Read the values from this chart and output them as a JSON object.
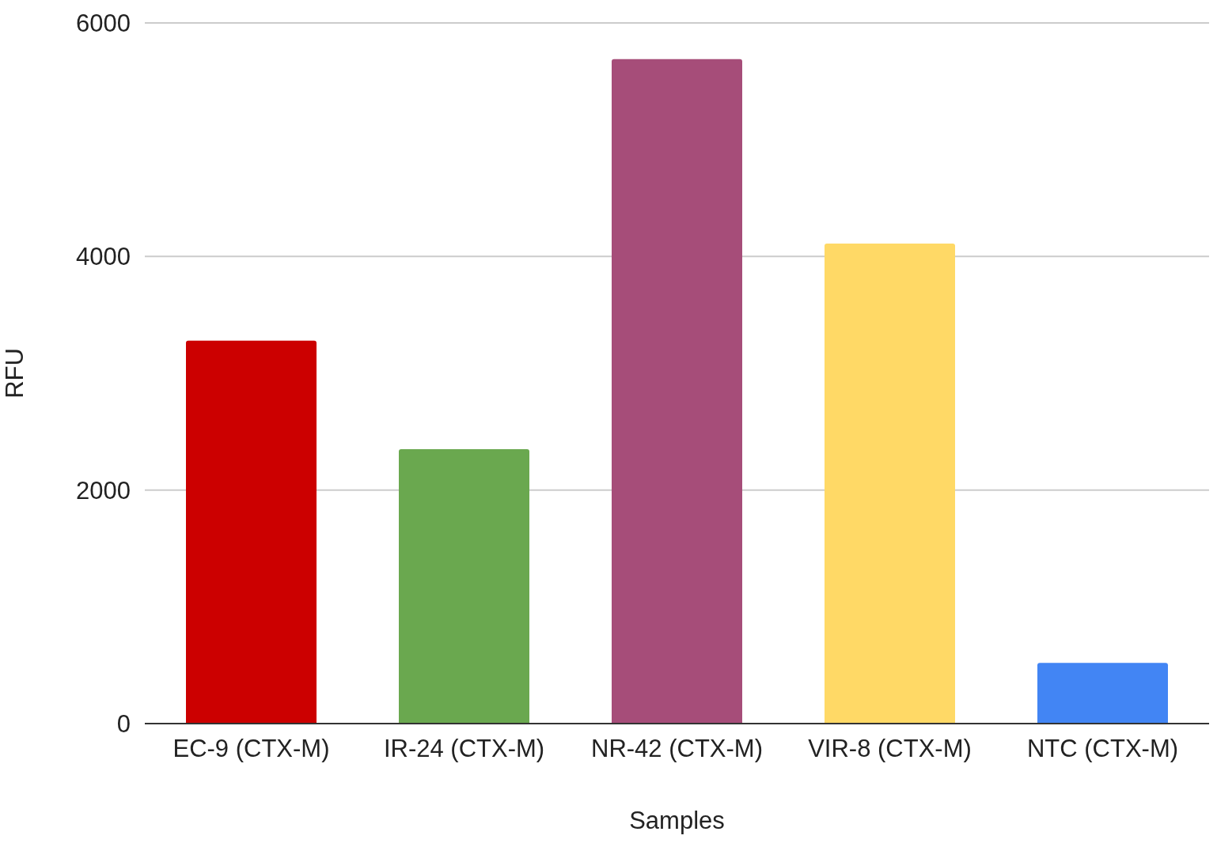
{
  "chart_data": {
    "type": "bar",
    "xlabel": "Samples",
    "ylabel": "RFU",
    "categories": [
      "EC-9 (CTX-M)",
      "IR-24 (CTX-M)",
      "NR-42 (CTX-M)",
      "VIR-8 (CTX-M)",
      "NTC (CTX-M)"
    ],
    "values": [
      3280,
      2350,
      5690,
      4110,
      520
    ],
    "colors": [
      "#cc0000",
      "#6aa84f",
      "#a64d79",
      "#ffd966",
      "#4285f4"
    ],
    "ylim": [
      0,
      6000
    ],
    "yticks": [
      0,
      2000,
      4000,
      6000
    ],
    "grid": "y"
  }
}
